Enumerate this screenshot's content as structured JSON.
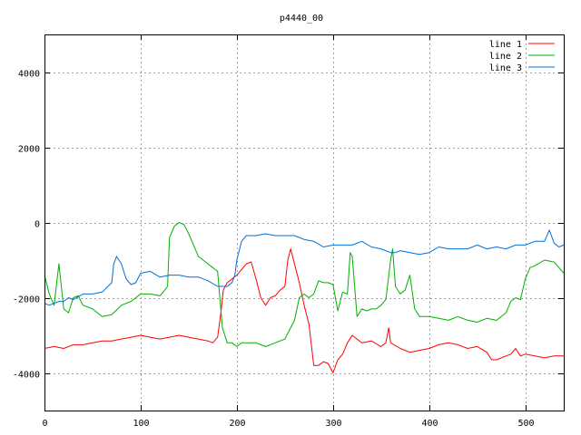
{
  "chart_data": {
    "type": "line",
    "title": "p4440_00",
    "xlabel": "",
    "ylabel": "",
    "xlim": [
      0,
      540
    ],
    "ylim": [
      -5000,
      5000
    ],
    "xticks": [
      0,
      100,
      200,
      300,
      400,
      500
    ],
    "yticks": [
      -4000,
      -2000,
      0,
      2000,
      4000
    ],
    "grid": true,
    "legend_position": "top-right",
    "series": [
      {
        "name": "line 1",
        "color": "#ff0000",
        "x": [
          0,
          10,
          20,
          30,
          40,
          50,
          60,
          70,
          80,
          90,
          100,
          110,
          120,
          130,
          140,
          150,
          160,
          170,
          175,
          180,
          183,
          186,
          190,
          195,
          200,
          205,
          210,
          215,
          220,
          225,
          230,
          235,
          240,
          245,
          250,
          253,
          256,
          260,
          265,
          270,
          275,
          280,
          285,
          290,
          295,
          300,
          305,
          310,
          315,
          320,
          330,
          340,
          350,
          355,
          358,
          360,
          370,
          380,
          390,
          400,
          410,
          420,
          430,
          440,
          450,
          460,
          465,
          470,
          480,
          485,
          490,
          495,
          500,
          510,
          520,
          530,
          540
        ],
        "y": [
          -3350,
          -3300,
          -3350,
          -3250,
          -3250,
          -3200,
          -3150,
          -3150,
          -3100,
          -3050,
          -3000,
          -3050,
          -3100,
          -3050,
          -3000,
          -3050,
          -3100,
          -3150,
          -3200,
          -3050,
          -2500,
          -1800,
          -1600,
          -1500,
          -1400,
          -1250,
          -1100,
          -1050,
          -1500,
          -2000,
          -2200,
          -2000,
          -1950,
          -1800,
          -1700,
          -1000,
          -700,
          -1100,
          -1600,
          -2200,
          -2700,
          -3800,
          -3800,
          -3700,
          -3750,
          -4000,
          -3650,
          -3500,
          -3200,
          -3000,
          -3200,
          -3150,
          -3300,
          -3200,
          -2800,
          -3200,
          -3350,
          -3450,
          -3400,
          -3350,
          -3250,
          -3200,
          -3250,
          -3350,
          -3300,
          -3450,
          -3650,
          -3650,
          -3550,
          -3500,
          -3350,
          -3550,
          -3500,
          -3550,
          -3600,
          -3550,
          -3550
        ]
      },
      {
        "name": "line 2",
        "color": "#00b000",
        "x": [
          0,
          5,
          10,
          15,
          20,
          25,
          30,
          35,
          40,
          50,
          60,
          70,
          80,
          90,
          100,
          110,
          120,
          125,
          128,
          130,
          135,
          140,
          145,
          150,
          155,
          160,
          165,
          170,
          175,
          180,
          185,
          190,
          195,
          200,
          205,
          210,
          220,
          230,
          240,
          250,
          260,
          265,
          270,
          275,
          280,
          285,
          290,
          295,
          300,
          305,
          310,
          315,
          318,
          320,
          325,
          330,
          335,
          340,
          345,
          350,
          355,
          360,
          362,
          365,
          370,
          375,
          380,
          385,
          390,
          395,
          400,
          410,
          420,
          430,
          440,
          450,
          460,
          470,
          480,
          485,
          490,
          495,
          500,
          505,
          510,
          520,
          530,
          540
        ],
        "y": [
          -1400,
          -1900,
          -2200,
          -1100,
          -2300,
          -2400,
          -2000,
          -1950,
          -2200,
          -2300,
          -2500,
          -2450,
          -2200,
          -2100,
          -1900,
          -1900,
          -1950,
          -1800,
          -1700,
          -400,
          -100,
          0,
          -50,
          -300,
          -600,
          -900,
          -1000,
          -1100,
          -1200,
          -1300,
          -2800,
          -3200,
          -3200,
          -3300,
          -3200,
          -3200,
          -3200,
          -3300,
          -3200,
          -3100,
          -2600,
          -2000,
          -1900,
          -2000,
          -1900,
          -1550,
          -1600,
          -1600,
          -1650,
          -2350,
          -1850,
          -1900,
          -800,
          -900,
          -2500,
          -2300,
          -2350,
          -2300,
          -2300,
          -2200,
          -2050,
          -1000,
          -700,
          -1700,
          -1900,
          -1800,
          -1400,
          -2300,
          -2500,
          -2500,
          -2500,
          -2550,
          -2600,
          -2500,
          -2600,
          -2650,
          -2550,
          -2600,
          -2400,
          -2100,
          -2000,
          -2050,
          -1500,
          -1200,
          -1150,
          -1000,
          -1050,
          -1350
        ]
      },
      {
        "name": "line 3",
        "color": "#0070d8",
        "x": [
          0,
          5,
          10,
          15,
          20,
          25,
          30,
          40,
          50,
          60,
          70,
          72,
          75,
          80,
          85,
          90,
          95,
          100,
          110,
          120,
          130,
          140,
          150,
          160,
          170,
          180,
          185,
          190,
          195,
          198,
          200,
          205,
          210,
          220,
          230,
          240,
          250,
          260,
          270,
          280,
          290,
          300,
          310,
          320,
          330,
          340,
          350,
          360,
          365,
          370,
          380,
          390,
          400,
          410,
          420,
          430,
          440,
          450,
          460,
          470,
          480,
          490,
          500,
          510,
          520,
          525,
          530,
          535,
          540
        ],
        "y": [
          -2150,
          -2200,
          -2150,
          -2100,
          -2100,
          -2000,
          -2050,
          -1900,
          -1900,
          -1850,
          -1600,
          -1100,
          -900,
          -1100,
          -1500,
          -1650,
          -1600,
          -1350,
          -1300,
          -1450,
          -1400,
          -1400,
          -1450,
          -1450,
          -1550,
          -1700,
          -1700,
          -1700,
          -1600,
          -1400,
          -1000,
          -500,
          -350,
          -350,
          -300,
          -350,
          -350,
          -350,
          -450,
          -500,
          -650,
          -600,
          -600,
          -600,
          -500,
          -650,
          -700,
          -800,
          -800,
          -750,
          -800,
          -850,
          -800,
          -650,
          -700,
          -700,
          -700,
          -600,
          -700,
          -650,
          -700,
          -600,
          -600,
          -500,
          -500,
          -200,
          -550,
          -650,
          -600
        ]
      }
    ]
  }
}
